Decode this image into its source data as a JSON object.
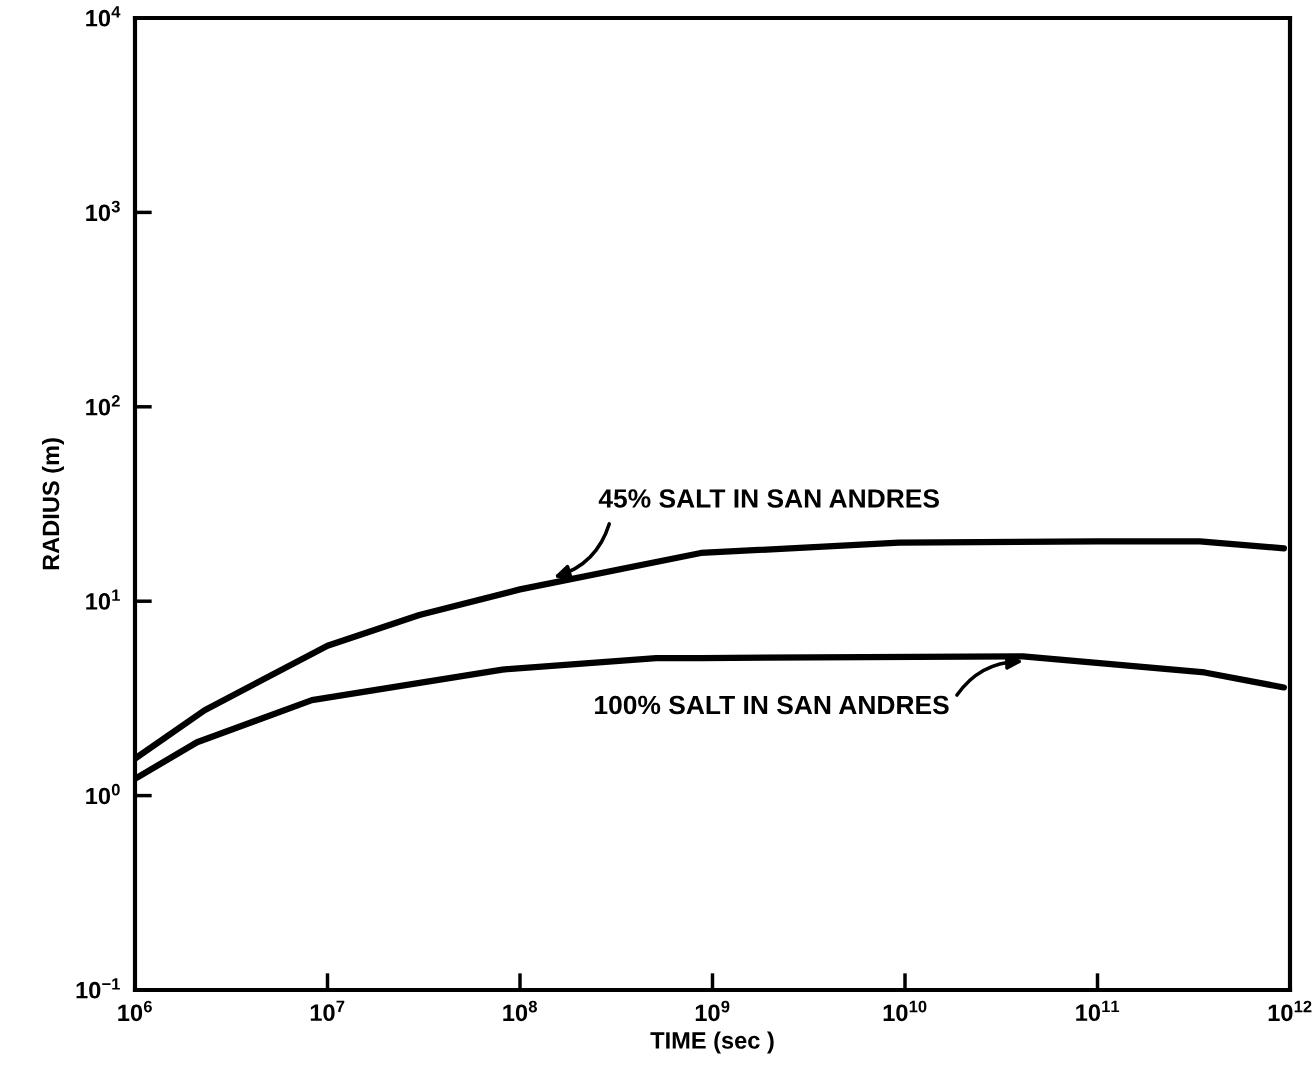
{
  "chart_data": {
    "type": "line",
    "xlabel": "TIME (sec )",
    "ylabel": "RADIUS (m)",
    "log": "xy",
    "xlim": [
      1000000.0,
      1000000000000.0
    ],
    "ylim": [
      0.1,
      10000
    ],
    "xticks": [
      {
        "value": 1000000.0,
        "label": "10$^{6}$"
      },
      {
        "value": 10000000.0,
        "label": "10$^{7}$"
      },
      {
        "value": 100000000.0,
        "label": "10$^{8}$"
      },
      {
        "value": 1000000000.0,
        "label": "10$^{9}$"
      },
      {
        "value": 10000000000.0,
        "label": "10$^{10}$"
      },
      {
        "value": 100000000000.0,
        "label": "10$^{11}$"
      },
      {
        "value": 1000000000000.0,
        "label": "10$^{12}$"
      }
    ],
    "yticks": [
      {
        "value": 0.1,
        "label": "10$^{−1}$"
      },
      {
        "value": 1,
        "label": "10$^{0}$"
      },
      {
        "value": 10,
        "label": "10$^{1}$"
      },
      {
        "value": 100,
        "label": "10$^{2}$"
      },
      {
        "value": 1000,
        "label": "10$^{3}$"
      },
      {
        "value": 10000,
        "label": "10$^{4}$"
      }
    ],
    "grid": false,
    "legend": false,
    "marker": "none",
    "line_style": "solid",
    "series": [
      {
        "color": "#000000",
        "x": [
          1000000.0,
          2300000.0,
          10000000.0,
          30000000.0,
          100000000.0,
          870000000.0,
          9300000000.0,
          100000000000.0,
          340000000000.0,
          930000000000.0
        ],
        "values": [
          1.55,
          2.75,
          5.9,
          8.5,
          11.5,
          17.7,
          20,
          20.3,
          20.3,
          18.7
        ]
      },
      {
        "color": "#000000",
        "x": [
          1000000.0,
          2100000.0,
          8300000.0,
          81000000.0,
          510000000.0,
          870000000.0,
          41000000000.0,
          360000000000.0,
          930000000000.0
        ],
        "values": [
          1.22,
          1.88,
          3.1,
          4.45,
          5.1,
          5.1,
          5.2,
          4.3,
          3.6
        ]
      }
    ],
    "annotations": [
      {
        "text": "45% SALT IN SAN ANDRES",
        "x": 150000000.0,
        "y": 13.3
      },
      {
        "text": "100% SALT IN SAN ANDRES",
        "x": 41000000000.0,
        "y": 4.9
      }
    ]
  }
}
